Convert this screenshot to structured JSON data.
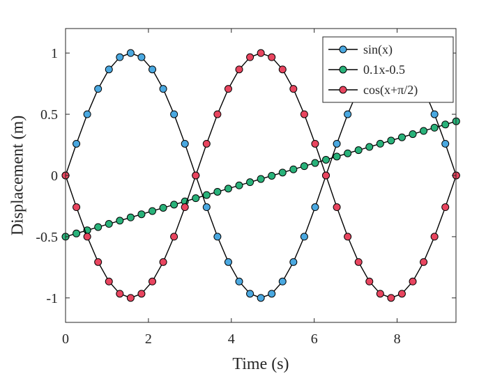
{
  "chart_data": {
    "type": "line",
    "xlabel": "Time (s)",
    "ylabel": "Displacement (m)",
    "xlim": [
      0,
      9.42
    ],
    "ylim": [
      -1.2,
      1.2
    ],
    "xticks": [
      0,
      2,
      4,
      6,
      8
    ],
    "xtick_labels": [
      "0",
      "2",
      "4",
      "6",
      "8"
    ],
    "yticks": [
      1,
      0.5,
      0,
      -0.5,
      -1
    ],
    "ytick_labels": [
      "1",
      "0.5",
      "0",
      "-0.5",
      "-1"
    ],
    "grid": false,
    "legend_position": "top-right",
    "line_color": "#000000",
    "series": [
      {
        "name": "sin(x)",
        "color": "#4aa8e0",
        "x": [
          0,
          0.2618,
          0.5236,
          0.7854,
          1.0472,
          1.309,
          1.5708,
          1.8326,
          2.0944,
          2.3562,
          2.618,
          2.8798,
          3.1416,
          3.4034,
          3.6652,
          3.927,
          4.1888,
          4.4506,
          4.7124,
          4.9742,
          5.236,
          5.4978,
          5.7596,
          6.0214,
          6.2832,
          6.545,
          6.8068,
          7.0686,
          7.3304,
          7.5922,
          7.854,
          8.1158,
          8.3776,
          8.6394,
          8.9012,
          9.163,
          9.4248
        ],
        "values": [
          0,
          0.2588,
          0.5,
          0.7071,
          0.866,
          0.9659,
          1,
          0.9659,
          0.866,
          0.7071,
          0.5,
          0.2588,
          0,
          -0.2588,
          -0.5,
          -0.7071,
          -0.866,
          -0.9659,
          -1,
          -0.9659,
          -0.866,
          -0.7071,
          -0.5,
          -0.2588,
          0,
          0.2588,
          0.5,
          0.7071,
          0.866,
          0.9659,
          1,
          0.9659,
          0.866,
          0.7071,
          0.5,
          0.2588,
          0
        ]
      },
      {
        "name": "0.1x-0.5",
        "color": "#29b27a",
        "x": [
          0,
          0.2618,
          0.5236,
          0.7854,
          1.0472,
          1.309,
          1.5708,
          1.8326,
          2.0944,
          2.3562,
          2.618,
          2.8798,
          3.1416,
          3.4034,
          3.6652,
          3.927,
          4.1888,
          4.4506,
          4.7124,
          4.9742,
          5.236,
          5.4978,
          5.7596,
          6.0214,
          6.2832,
          6.545,
          6.8068,
          7.0686,
          7.3304,
          7.5922,
          7.854,
          8.1158,
          8.3776,
          8.6394,
          8.9012,
          9.163,
          9.4248
        ],
        "values": [
          -0.5,
          -0.4738,
          -0.4476,
          -0.4215,
          -0.3953,
          -0.3691,
          -0.3429,
          -0.3167,
          -0.2906,
          -0.2644,
          -0.2382,
          -0.212,
          -0.1858,
          -0.1597,
          -0.1335,
          -0.1073,
          -0.0811,
          -0.0549,
          -0.0288,
          -0.0026,
          0.0236,
          0.0498,
          0.076,
          0.1021,
          0.1283,
          0.1545,
          0.1807,
          0.2069,
          0.233,
          0.2592,
          0.2854,
          0.3116,
          0.3378,
          0.3639,
          0.3901,
          0.4163,
          0.4425
        ]
      },
      {
        "name": "cos(x+π/2)",
        "color": "#e8455f",
        "x": [
          0,
          0.2618,
          0.5236,
          0.7854,
          1.0472,
          1.309,
          1.5708,
          1.8326,
          2.0944,
          2.3562,
          2.618,
          2.8798,
          3.1416,
          3.4034,
          3.6652,
          3.927,
          4.1888,
          4.4506,
          4.7124,
          4.9742,
          5.236,
          5.4978,
          5.7596,
          6.0214,
          6.2832,
          6.545,
          6.8068,
          7.0686,
          7.3304,
          7.5922,
          7.854,
          8.1158,
          8.3776,
          8.6394,
          8.9012,
          9.163,
          9.4248
        ],
        "values": [
          0,
          -0.2588,
          -0.5,
          -0.7071,
          -0.866,
          -0.9659,
          -1,
          -0.9659,
          -0.866,
          -0.7071,
          -0.5,
          -0.2588,
          0,
          0.2588,
          0.5,
          0.7071,
          0.866,
          0.9659,
          1,
          0.9659,
          0.866,
          0.7071,
          0.5,
          0.2588,
          0,
          -0.2588,
          -0.5,
          -0.7071,
          -0.866,
          -0.9659,
          -1,
          -0.9659,
          -0.866,
          -0.7071,
          -0.5,
          -0.2588,
          0
        ]
      }
    ]
  }
}
